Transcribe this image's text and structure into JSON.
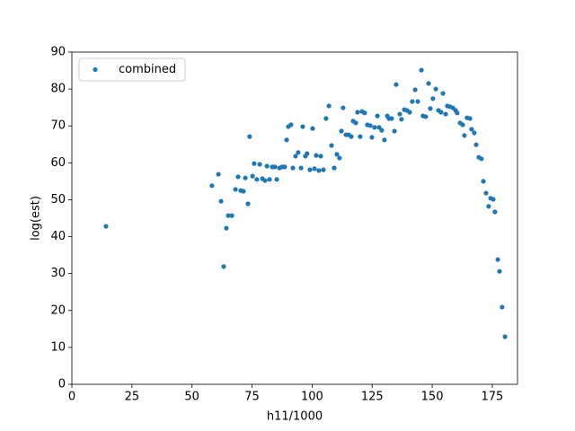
{
  "chart_data": {
    "type": "scatter",
    "x_label": "h11/1000",
    "y_label": "log(est)",
    "xlim": [
      0,
      185.5
    ],
    "ylim": [
      0,
      90
    ],
    "xticks": [
      0,
      25,
      50,
      75,
      100,
      125,
      150,
      175
    ],
    "yticks": [
      0,
      10,
      20,
      30,
      40,
      50,
      60,
      70,
      80,
      90
    ],
    "grid": false,
    "legend_loc": "upper left",
    "x": [
      14.2,
      58.3,
      61.0,
      62.1,
      63.2,
      64.3,
      65.1,
      66.6,
      68.1,
      69.2,
      70.3,
      71.4,
      72.2,
      73.3,
      74.0,
      75.2,
      75.9,
      77.0,
      78.2,
      79.3,
      80.4,
      81.2,
      82.3,
      83.4,
      84.5,
      85.3,
      86.4,
      87.5,
      88.6,
      89.4,
      90.1,
      91.2,
      92.0,
      93.1,
      94.2,
      95.4,
      96.1,
      97.2,
      97.9,
      99.1,
      100.2,
      101.0,
      101.7,
      102.8,
      103.6,
      104.7,
      105.8,
      107.0,
      108.1,
      109.2,
      110.3,
      111.4,
      112.2,
      112.9,
      114.1,
      115.2,
      116.3,
      117.1,
      118.2,
      118.9,
      120.0,
      120.8,
      121.9,
      123.0,
      124.2,
      124.9,
      126.0,
      127.2,
      127.9,
      129.0,
      130.1,
      131.3,
      132.0,
      133.1,
      134.3,
      135.0,
      136.5,
      137.2,
      138.4,
      139.5,
      140.6,
      141.7,
      142.9,
      144.0,
      145.5,
      146.2,
      147.3,
      148.5,
      149.2,
      150.3,
      151.5,
      152.6,
      153.7,
      154.5,
      155.6,
      156.3,
      157.4,
      158.6,
      159.7,
      160.4,
      161.6,
      162.7,
      163.4,
      164.5,
      165.7,
      166.4,
      167.5,
      168.3,
      169.4,
      170.5,
      171.3,
      172.4,
      173.5,
      174.3,
      175.4,
      176.1,
      177.3,
      178.0,
      179.1,
      180.3
    ],
    "series": [
      {
        "name": "combined",
        "color": "#1f77b4",
        "values": [
          42.8,
          53.8,
          56.9,
          49.6,
          31.9,
          42.3,
          45.7,
          45.7,
          52.8,
          56.2,
          52.5,
          52.3,
          55.9,
          48.9,
          67.1,
          56.4,
          59.8,
          55.5,
          59.6,
          55.7,
          55.2,
          59.1,
          55.5,
          58.9,
          58.9,
          55.5,
          58.6,
          58.9,
          58.9,
          66.2,
          69.8,
          70.3,
          58.6,
          61.8,
          62.8,
          58.6,
          69.8,
          61.8,
          62.5,
          58.1,
          69.3,
          58.4,
          62.0,
          57.9,
          61.8,
          58.1,
          72.0,
          75.4,
          64.7,
          58.6,
          62.3,
          61.3,
          68.6,
          74.9,
          67.6,
          67.6,
          67.1,
          71.3,
          70.8,
          73.7,
          67.1,
          73.9,
          73.5,
          70.3,
          70.1,
          66.9,
          69.6,
          72.7,
          69.6,
          68.8,
          66.2,
          72.7,
          72.0,
          72.0,
          68.6,
          81.2,
          73.2,
          71.8,
          74.4,
          74.2,
          73.7,
          76.6,
          79.8,
          76.6,
          85.1,
          72.7,
          72.5,
          81.5,
          74.7,
          77.4,
          80.0,
          74.2,
          73.7,
          78.8,
          73.2,
          75.4,
          75.2,
          74.9,
          74.2,
          73.5,
          70.8,
          70.3,
          67.4,
          72.2,
          72.0,
          69.1,
          68.1,
          64.9,
          61.5,
          61.1,
          55.0,
          51.8,
          48.2,
          50.4,
          50.1,
          46.7,
          33.8,
          30.6,
          20.9,
          12.9
        ]
      }
    ]
  }
}
